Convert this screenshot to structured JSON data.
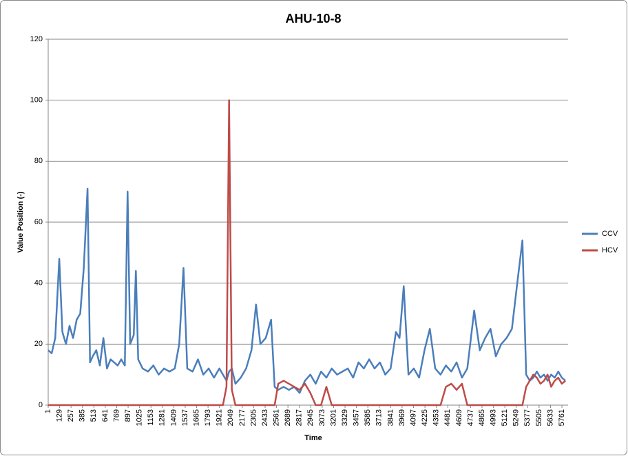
{
  "chart_data": {
    "type": "line",
    "title": "AHU-10-8",
    "x_label": "Time",
    "y_label": "Value Position (-)",
    "x": [
      1,
      40,
      80,
      125,
      160,
      200,
      240,
      280,
      320,
      360,
      400,
      442,
      470,
      500,
      540,
      580,
      620,
      660,
      700,
      740,
      780,
      820,
      860,
      891,
      920,
      960,
      984,
      1010,
      1060,
      1120,
      1180,
      1240,
      1300,
      1360,
      1420,
      1470,
      1518,
      1560,
      1620,
      1680,
      1740,
      1800,
      1860,
      1920,
      1960,
      2000,
      2029,
      2060,
      2100,
      2160,
      2220,
      2280,
      2331,
      2380,
      2440,
      2500,
      2540,
      2580,
      2640,
      2700,
      2760,
      2820,
      2880,
      2940,
      3000,
      3060,
      3120,
      3180,
      3240,
      3300,
      3360,
      3420,
      3480,
      3540,
      3600,
      3660,
      3720,
      3780,
      3840,
      3900,
      3940,
      3987,
      4040,
      4100,
      4160,
      4220,
      4280,
      4340,
      4400,
      4460,
      4520,
      4580,
      4640,
      4700,
      4777,
      4840,
      4900,
      4960,
      5020,
      5080,
      5140,
      5200,
      5260,
      5318,
      5360,
      5400,
      5440,
      5480,
      5520,
      5560,
      5600,
      5640,
      5680,
      5720,
      5760,
      5800
    ],
    "series": [
      {
        "name": "CCV",
        "color": "#4a7ebb",
        "values": [
          18,
          17,
          22,
          48,
          24,
          20,
          26,
          22,
          28,
          30,
          45,
          71,
          14,
          16,
          18,
          13,
          22,
          12,
          15,
          14,
          13,
          15,
          13,
          70,
          20,
          23,
          44,
          15,
          12,
          11,
          13,
          10,
          12,
          11,
          12,
          20,
          45,
          12,
          11,
          15,
          10,
          12,
          9,
          12,
          10,
          8,
          11,
          12,
          7,
          9,
          12,
          18,
          33,
          20,
          22,
          28,
          6,
          5,
          6,
          5,
          6,
          4,
          8,
          10,
          7,
          11,
          9,
          12,
          10,
          11,
          12,
          9,
          14,
          12,
          15,
          12,
          14,
          10,
          12,
          24,
          22,
          39,
          10,
          12,
          9,
          18,
          25,
          12,
          10,
          13,
          11,
          14,
          9,
          12,
          31,
          18,
          22,
          25,
          16,
          20,
          22,
          25,
          40,
          54,
          10,
          8,
          9,
          11,
          9,
          10,
          8,
          10,
          9,
          11,
          9,
          8
        ]
      },
      {
        "name": "HCV",
        "color": "#be4b48",
        "values": [
          0,
          0,
          0,
          0,
          0,
          0,
          0,
          0,
          0,
          0,
          0,
          0,
          0,
          0,
          0,
          0,
          0,
          0,
          0,
          0,
          0,
          0,
          0,
          0,
          0,
          0,
          0,
          0,
          0,
          0,
          0,
          0,
          0,
          0,
          0,
          0,
          0,
          0,
          0,
          0,
          0,
          0,
          0,
          0,
          0,
          6,
          100,
          5,
          0,
          0,
          0,
          0,
          0,
          0,
          0,
          0,
          0,
          7,
          8,
          7,
          6,
          5,
          7,
          4,
          0,
          0,
          6,
          0,
          0,
          0,
          0,
          0,
          0,
          0,
          0,
          0,
          0,
          0,
          0,
          0,
          0,
          0,
          0,
          0,
          0,
          0,
          0,
          0,
          0,
          6,
          7,
          5,
          7,
          0,
          0,
          0,
          0,
          0,
          0,
          0,
          0,
          0,
          0,
          0,
          6,
          8,
          10,
          9,
          7,
          8,
          10,
          6,
          8,
          9,
          7,
          8
        ]
      }
    ],
    "xlim": [
      1,
      5830
    ],
    "xticks": [
      1,
      129,
      257,
      385,
      513,
      641,
      769,
      897,
      1025,
      1153,
      1281,
      1409,
      1537,
      1665,
      1793,
      1921,
      2049,
      2177,
      2305,
      2433,
      2561,
      2689,
      2817,
      2945,
      3073,
      3201,
      3329,
      3457,
      3585,
      3713,
      3841,
      3969,
      4097,
      4225,
      4353,
      4481,
      4609,
      4737,
      4865,
      4993,
      5121,
      5249,
      5377,
      5505,
      5633,
      5761
    ],
    "ylim": [
      0,
      120
    ],
    "yticks": [
      0,
      20,
      40,
      60,
      80,
      100,
      120
    ],
    "grid": true,
    "legend": "right"
  }
}
